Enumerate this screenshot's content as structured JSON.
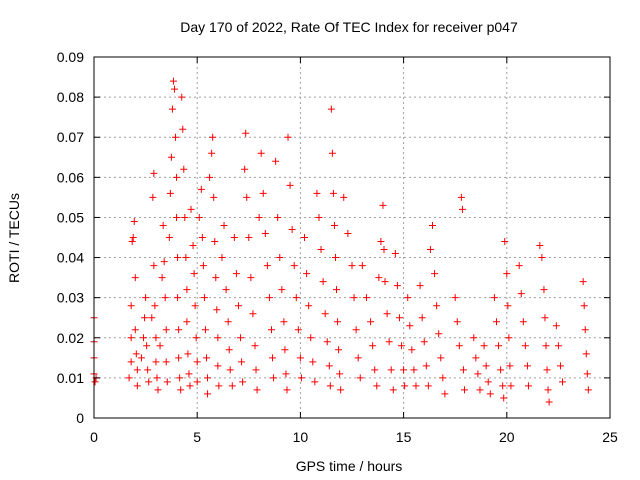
{
  "chart_data": {
    "type": "scatter",
    "title": "Day 170 of 2022, Rate Of TEC Index for receiver p047",
    "xlabel": "GPS time / hours",
    "ylabel": "ROTI / TECUs",
    "xlim": [
      0,
      25
    ],
    "ylim": [
      0,
      0.09
    ],
    "x_ticks": [
      0,
      5,
      10,
      15,
      20,
      25
    ],
    "x_tick_labels": [
      "0",
      "5",
      "10",
      "15",
      "20",
      "25"
    ],
    "y_ticks": [
      0,
      0.01,
      0.02,
      0.03,
      0.04,
      0.05,
      0.06,
      0.07,
      0.08,
      0.09
    ],
    "y_tick_labels": [
      "0",
      "0.01",
      "0.02",
      "0.03",
      "0.04",
      "0.05",
      "0.06",
      "0.07",
      "0.08",
      "0.09"
    ],
    "grid": true,
    "marker": "+",
    "series": [
      {
        "color": "#ff0000",
        "points": [
          [
            0.0,
            0.025
          ],
          [
            0.0,
            0.019
          ],
          [
            0.0,
            0.015
          ],
          [
            0.0,
            0.011
          ],
          [
            0.05,
            0.009
          ],
          [
            0.1,
            0.01
          ],
          [
            1.7,
            0.01
          ],
          [
            1.8,
            0.014
          ],
          [
            1.8,
            0.02
          ],
          [
            1.8,
            0.028
          ],
          [
            1.85,
            0.044
          ],
          [
            1.9,
            0.045
          ],
          [
            1.95,
            0.049
          ],
          [
            2.0,
            0.035
          ],
          [
            2.0,
            0.022
          ],
          [
            2.05,
            0.016
          ],
          [
            2.1,
            0.012
          ],
          [
            2.1,
            0.008
          ],
          [
            2.3,
            0.015
          ],
          [
            2.4,
            0.02
          ],
          [
            2.45,
            0.025
          ],
          [
            2.5,
            0.03
          ],
          [
            2.55,
            0.018
          ],
          [
            2.6,
            0.012
          ],
          [
            2.65,
            0.009
          ],
          [
            2.8,
            0.025
          ],
          [
            2.85,
            0.055
          ],
          [
            2.9,
            0.061
          ],
          [
            2.9,
            0.038
          ],
          [
            2.95,
            0.028
          ],
          [
            3.0,
            0.02
          ],
          [
            3.0,
            0.014
          ],
          [
            3.05,
            0.01
          ],
          [
            3.1,
            0.007
          ],
          [
            3.2,
            0.018
          ],
          [
            3.3,
            0.035
          ],
          [
            3.35,
            0.048
          ],
          [
            3.4,
            0.039
          ],
          [
            3.45,
            0.03
          ],
          [
            3.5,
            0.022
          ],
          [
            3.5,
            0.014
          ],
          [
            3.55,
            0.009
          ],
          [
            3.65,
            0.045
          ],
          [
            3.7,
            0.056
          ],
          [
            3.75,
            0.065
          ],
          [
            3.8,
            0.077
          ],
          [
            3.85,
            0.084
          ],
          [
            3.9,
            0.082
          ],
          [
            3.95,
            0.07
          ],
          [
            4.0,
            0.06
          ],
          [
            4.0,
            0.05
          ],
          [
            4.05,
            0.04
          ],
          [
            4.05,
            0.03
          ],
          [
            4.1,
            0.022
          ],
          [
            4.1,
            0.015
          ],
          [
            4.15,
            0.01
          ],
          [
            4.2,
            0.007
          ],
          [
            4.25,
            0.08
          ],
          [
            4.3,
            0.072
          ],
          [
            4.35,
            0.062
          ],
          [
            4.4,
            0.05
          ],
          [
            4.45,
            0.04
          ],
          [
            4.5,
            0.032
          ],
          [
            4.5,
            0.024
          ],
          [
            4.55,
            0.016
          ],
          [
            4.6,
            0.011
          ],
          [
            4.65,
            0.008
          ],
          [
            4.7,
            0.052
          ],
          [
            4.8,
            0.043
          ],
          [
            4.85,
            0.036
          ],
          [
            4.9,
            0.028
          ],
          [
            4.95,
            0.02
          ],
          [
            5.0,
            0.014
          ],
          [
            5.0,
            0.009
          ],
          [
            5.1,
            0.05
          ],
          [
            5.2,
            0.057
          ],
          [
            5.25,
            0.045
          ],
          [
            5.3,
            0.038
          ],
          [
            5.35,
            0.03
          ],
          [
            5.4,
            0.022
          ],
          [
            5.45,
            0.015
          ],
          [
            5.5,
            0.01
          ],
          [
            5.5,
            0.006
          ],
          [
            5.6,
            0.06
          ],
          [
            5.7,
            0.066
          ],
          [
            5.75,
            0.07
          ],
          [
            5.8,
            0.055
          ],
          [
            5.85,
            0.044
          ],
          [
            5.9,
            0.035
          ],
          [
            5.95,
            0.027
          ],
          [
            6.0,
            0.02
          ],
          [
            6.0,
            0.013
          ],
          [
            6.05,
            0.008
          ],
          [
            6.2,
            0.04
          ],
          [
            6.3,
            0.048
          ],
          [
            6.4,
            0.032
          ],
          [
            6.5,
            0.024
          ],
          [
            6.55,
            0.017
          ],
          [
            6.6,
            0.012
          ],
          [
            6.7,
            0.008
          ],
          [
            6.8,
            0.045
          ],
          [
            6.9,
            0.036
          ],
          [
            7.0,
            0.028
          ],
          [
            7.1,
            0.02
          ],
          [
            7.15,
            0.014
          ],
          [
            7.2,
            0.009
          ],
          [
            7.3,
            0.062
          ],
          [
            7.35,
            0.071
          ],
          [
            7.4,
            0.055
          ],
          [
            7.5,
            0.045
          ],
          [
            7.6,
            0.035
          ],
          [
            7.7,
            0.026
          ],
          [
            7.8,
            0.018
          ],
          [
            7.85,
            0.012
          ],
          [
            7.9,
            0.007
          ],
          [
            8.0,
            0.05
          ],
          [
            8.1,
            0.066
          ],
          [
            8.2,
            0.056
          ],
          [
            8.3,
            0.046
          ],
          [
            8.4,
            0.038
          ],
          [
            8.5,
            0.03
          ],
          [
            8.6,
            0.022
          ],
          [
            8.65,
            0.015
          ],
          [
            8.7,
            0.01
          ],
          [
            8.8,
            0.064
          ],
          [
            8.9,
            0.05
          ],
          [
            9.0,
            0.04
          ],
          [
            9.1,
            0.032
          ],
          [
            9.2,
            0.024
          ],
          [
            9.25,
            0.017
          ],
          [
            9.3,
            0.011
          ],
          [
            9.35,
            0.007
          ],
          [
            9.4,
            0.07
          ],
          [
            9.5,
            0.058
          ],
          [
            9.6,
            0.047
          ],
          [
            9.7,
            0.038
          ],
          [
            9.8,
            0.03
          ],
          [
            9.9,
            0.022
          ],
          [
            10.0,
            0.015
          ],
          [
            10.05,
            0.01
          ],
          [
            10.2,
            0.045
          ],
          [
            10.3,
            0.036
          ],
          [
            10.4,
            0.028
          ],
          [
            10.5,
            0.02
          ],
          [
            10.6,
            0.014
          ],
          [
            10.7,
            0.009
          ],
          [
            10.8,
            0.056
          ],
          [
            10.9,
            0.05
          ],
          [
            11.0,
            0.042
          ],
          [
            11.1,
            0.034
          ],
          [
            11.2,
            0.026
          ],
          [
            11.3,
            0.019
          ],
          [
            11.4,
            0.013
          ],
          [
            11.45,
            0.008
          ],
          [
            11.5,
            0.077
          ],
          [
            11.55,
            0.066
          ],
          [
            11.6,
            0.056
          ],
          [
            11.65,
            0.048
          ],
          [
            11.7,
            0.04
          ],
          [
            11.75,
            0.032
          ],
          [
            11.8,
            0.024
          ],
          [
            11.85,
            0.017
          ],
          [
            11.9,
            0.011
          ],
          [
            11.95,
            0.007
          ],
          [
            12.1,
            0.055
          ],
          [
            12.3,
            0.046
          ],
          [
            12.5,
            0.038
          ],
          [
            12.6,
            0.03
          ],
          [
            12.7,
            0.022
          ],
          [
            12.8,
            0.015
          ],
          [
            12.9,
            0.01
          ],
          [
            13.0,
            0.038
          ],
          [
            13.2,
            0.03
          ],
          [
            13.4,
            0.024
          ],
          [
            13.5,
            0.018
          ],
          [
            13.6,
            0.012
          ],
          [
            13.7,
            0.008
          ],
          [
            13.8,
            0.035
          ],
          [
            13.9,
            0.044
          ],
          [
            14.0,
            0.053
          ],
          [
            14.05,
            0.042
          ],
          [
            14.1,
            0.034
          ],
          [
            14.2,
            0.026
          ],
          [
            14.3,
            0.019
          ],
          [
            14.4,
            0.012
          ],
          [
            14.5,
            0.007
          ],
          [
            14.6,
            0.041
          ],
          [
            14.7,
            0.033
          ],
          [
            14.8,
            0.025
          ],
          [
            14.9,
            0.018
          ],
          [
            15.0,
            0.012
          ],
          [
            15.05,
            0.008
          ],
          [
            15.2,
            0.03
          ],
          [
            15.3,
            0.023
          ],
          [
            15.4,
            0.017
          ],
          [
            15.5,
            0.012
          ],
          [
            15.6,
            0.008
          ],
          [
            15.8,
            0.033
          ],
          [
            15.9,
            0.025
          ],
          [
            16.0,
            0.019
          ],
          [
            16.1,
            0.013
          ],
          [
            16.2,
            0.008
          ],
          [
            16.3,
            0.042
          ],
          [
            16.4,
            0.048
          ],
          [
            16.5,
            0.036
          ],
          [
            16.6,
            0.028
          ],
          [
            16.7,
            0.021
          ],
          [
            16.8,
            0.015
          ],
          [
            16.9,
            0.01
          ],
          [
            17.0,
            0.006
          ],
          [
            17.5,
            0.03
          ],
          [
            17.6,
            0.024
          ],
          [
            17.7,
            0.018
          ],
          [
            17.8,
            0.055
          ],
          [
            17.85,
            0.052
          ],
          [
            17.9,
            0.012
          ],
          [
            17.95,
            0.007
          ],
          [
            18.4,
            0.02
          ],
          [
            18.5,
            0.015
          ],
          [
            18.6,
            0.011
          ],
          [
            18.7,
            0.007
          ],
          [
            18.9,
            0.018
          ],
          [
            19.0,
            0.013
          ],
          [
            19.1,
            0.009
          ],
          [
            19.2,
            0.006
          ],
          [
            19.4,
            0.03
          ],
          [
            19.5,
            0.024
          ],
          [
            19.6,
            0.018
          ],
          [
            19.7,
            0.012
          ],
          [
            19.8,
            0.008
          ],
          [
            19.85,
            0.005
          ],
          [
            19.9,
            0.044
          ],
          [
            20.0,
            0.036
          ],
          [
            20.05,
            0.028
          ],
          [
            20.1,
            0.02
          ],
          [
            20.15,
            0.013
          ],
          [
            20.2,
            0.008
          ],
          [
            20.6,
            0.038
          ],
          [
            20.7,
            0.031
          ],
          [
            20.8,
            0.024
          ],
          [
            20.9,
            0.018
          ],
          [
            21.0,
            0.013
          ],
          [
            21.05,
            0.008
          ],
          [
            21.6,
            0.043
          ],
          [
            21.7,
            0.04
          ],
          [
            21.8,
            0.032
          ],
          [
            21.85,
            0.025
          ],
          [
            21.9,
            0.018
          ],
          [
            21.95,
            0.012
          ],
          [
            22.0,
            0.007
          ],
          [
            22.05,
            0.004
          ],
          [
            22.4,
            0.023
          ],
          [
            22.5,
            0.018
          ],
          [
            22.6,
            0.013
          ],
          [
            22.7,
            0.009
          ],
          [
            23.7,
            0.034
          ],
          [
            23.75,
            0.028
          ],
          [
            23.8,
            0.022
          ],
          [
            23.85,
            0.016
          ],
          [
            23.9,
            0.011
          ],
          [
            23.95,
            0.007
          ]
        ]
      }
    ]
  }
}
